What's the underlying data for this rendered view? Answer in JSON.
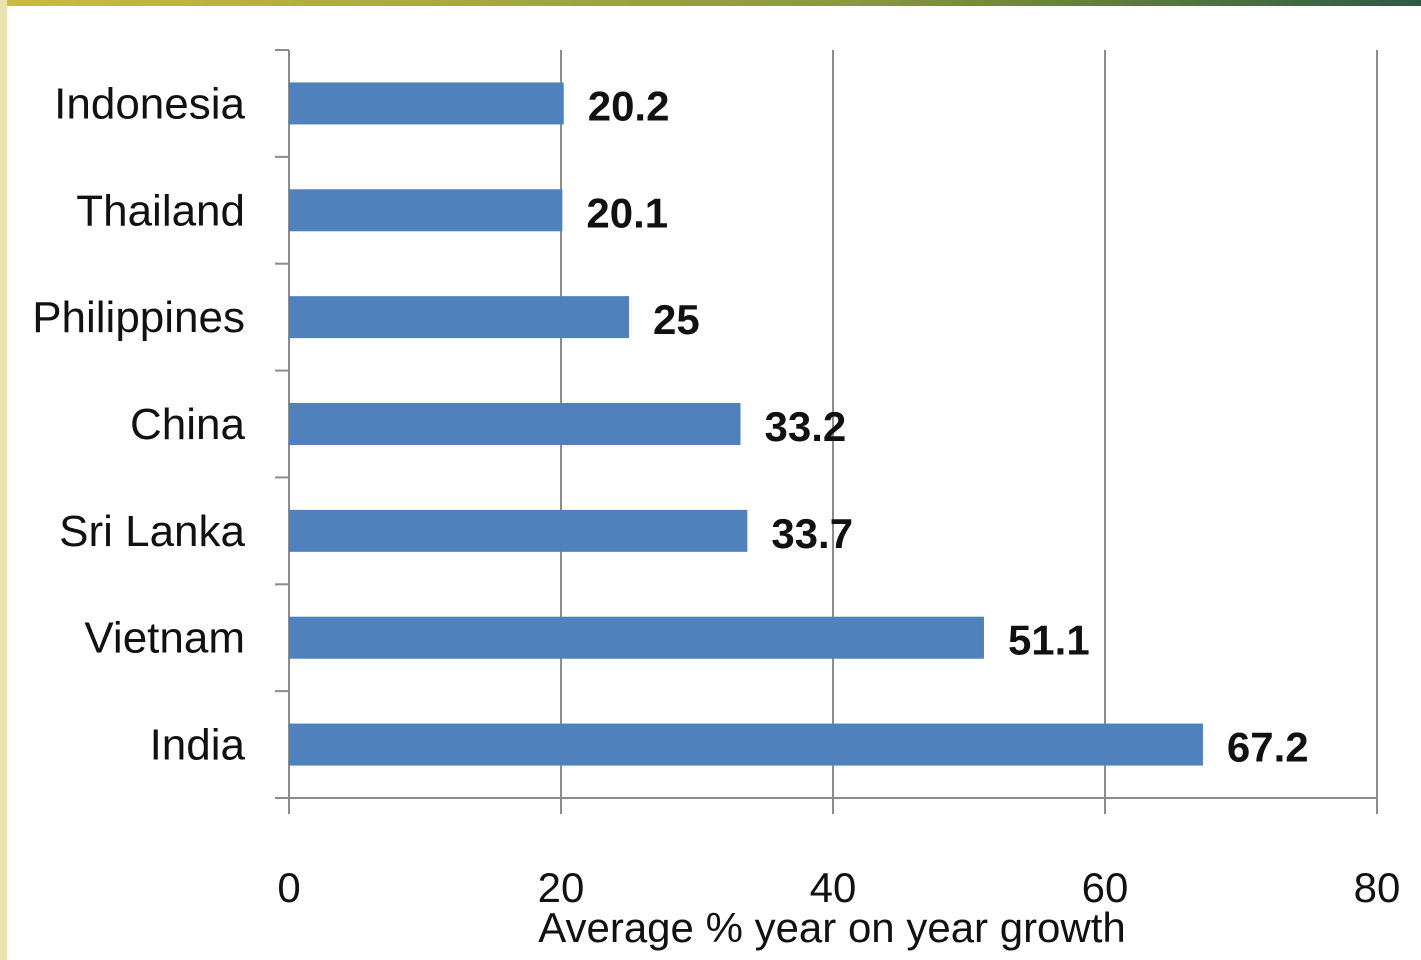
{
  "chart_data": {
    "type": "bar",
    "orientation": "horizontal",
    "categories": [
      "Indonesia",
      "Thailand",
      "Philippines",
      "China",
      "Sri Lanka",
      "Vietnam",
      "India"
    ],
    "values": [
      20.2,
      20.1,
      25,
      33.2,
      33.7,
      51.1,
      67.2
    ],
    "value_labels": [
      "20.2",
      "20.1",
      "25",
      "33.2",
      "33.7",
      "51.1",
      "67.2"
    ],
    "xlabel": "Average % year on year growth",
    "xlim": [
      0,
      80
    ],
    "xticks": [
      0,
      20,
      40,
      60,
      80
    ],
    "grid": "vertical",
    "bar_color": "#4f81bd"
  }
}
